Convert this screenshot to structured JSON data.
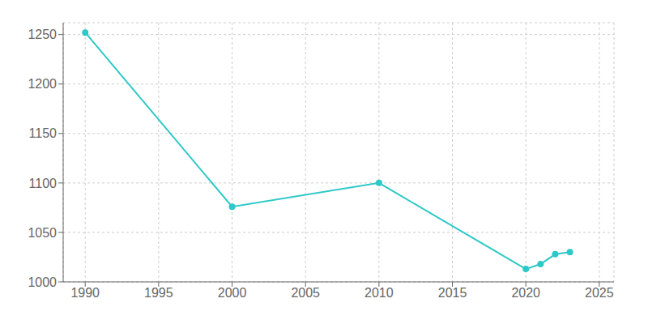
{
  "chart_data": {
    "type": "line",
    "x": [
      1990,
      2000,
      2010,
      2020,
      2021,
      2022,
      2023
    ],
    "values": [
      1252,
      1076,
      1100,
      1013,
      1018,
      1028,
      1030
    ],
    "color": "#2ec8c8",
    "marker": "circle",
    "xlim": [
      1988.5,
      2026
    ],
    "ylim": [
      1000,
      1262
    ],
    "xticks": [
      1990,
      1995,
      2000,
      2005,
      2010,
      2015,
      2020,
      2025
    ],
    "yticks": [
      1000,
      1050,
      1100,
      1150,
      1200,
      1250
    ],
    "grid": true
  }
}
